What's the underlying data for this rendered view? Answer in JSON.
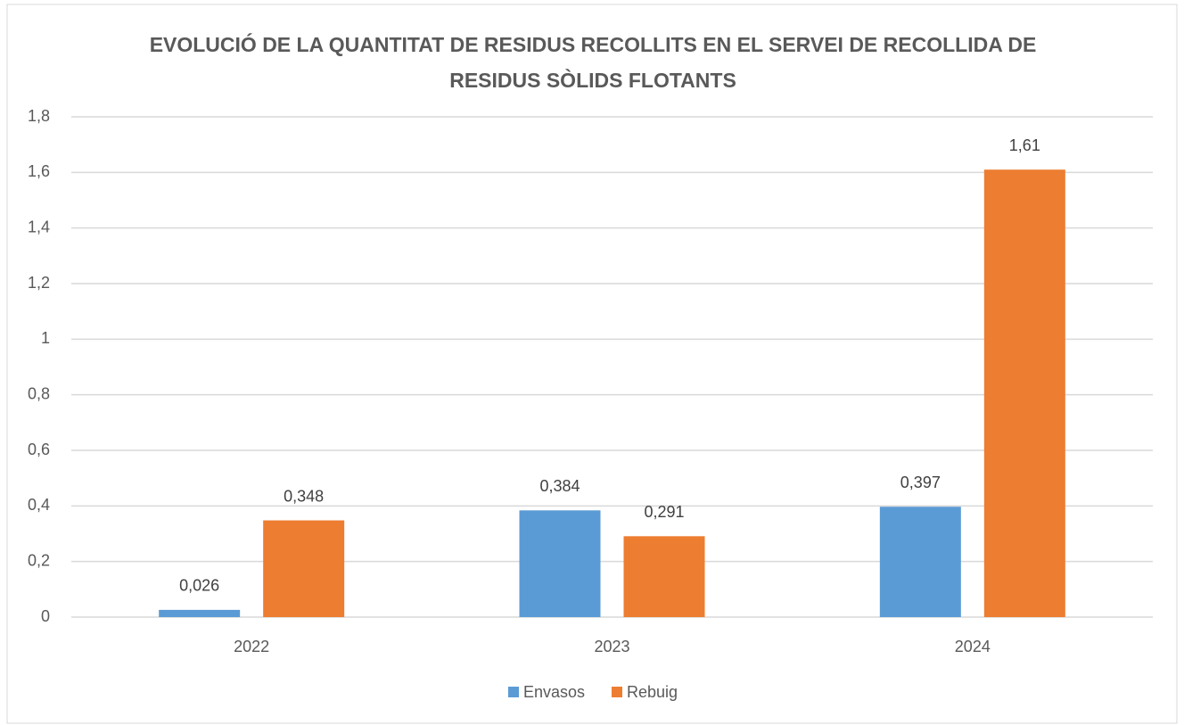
{
  "chart_data": {
    "type": "bar",
    "title": "EVOLUCIÓ DE LA QUANTITAT DE RESIDUS RECOLLITS EN EL SERVEI DE RECOLLIDA DE RESIDUS SÒLIDS FLOTANTS",
    "categories": [
      "2022",
      "2023",
      "2024"
    ],
    "series": [
      {
        "name": "Envasos",
        "color": "#5b9bd5",
        "values": [
          0.026,
          0.384,
          0.397
        ],
        "value_labels": [
          "0,026",
          "0,384",
          "0,397"
        ]
      },
      {
        "name": "Rebuig",
        "color": "#ed7d31",
        "values": [
          0.348,
          0.291,
          1.61
        ],
        "value_labels": [
          "0,348",
          "0,291",
          "1,61"
        ]
      }
    ],
    "ylim": [
      0,
      1.8
    ],
    "yticks": [
      0,
      {
        "value": 0.2,
        "label": "0,2"
      },
      {
        "value": 0.4,
        "label": "0,4"
      },
      {
        "value": 0.6,
        "label": "0,6"
      },
      {
        "value": 0.8,
        "label": "0,8"
      },
      1,
      {
        "value": 1.2,
        "label": "1,2"
      },
      {
        "value": 1.4,
        "label": "1,4"
      },
      {
        "value": 1.6,
        "label": "1,6"
      },
      {
        "value": 1.8,
        "label": "1,8"
      }
    ],
    "grid": true,
    "legend": "bottom"
  }
}
